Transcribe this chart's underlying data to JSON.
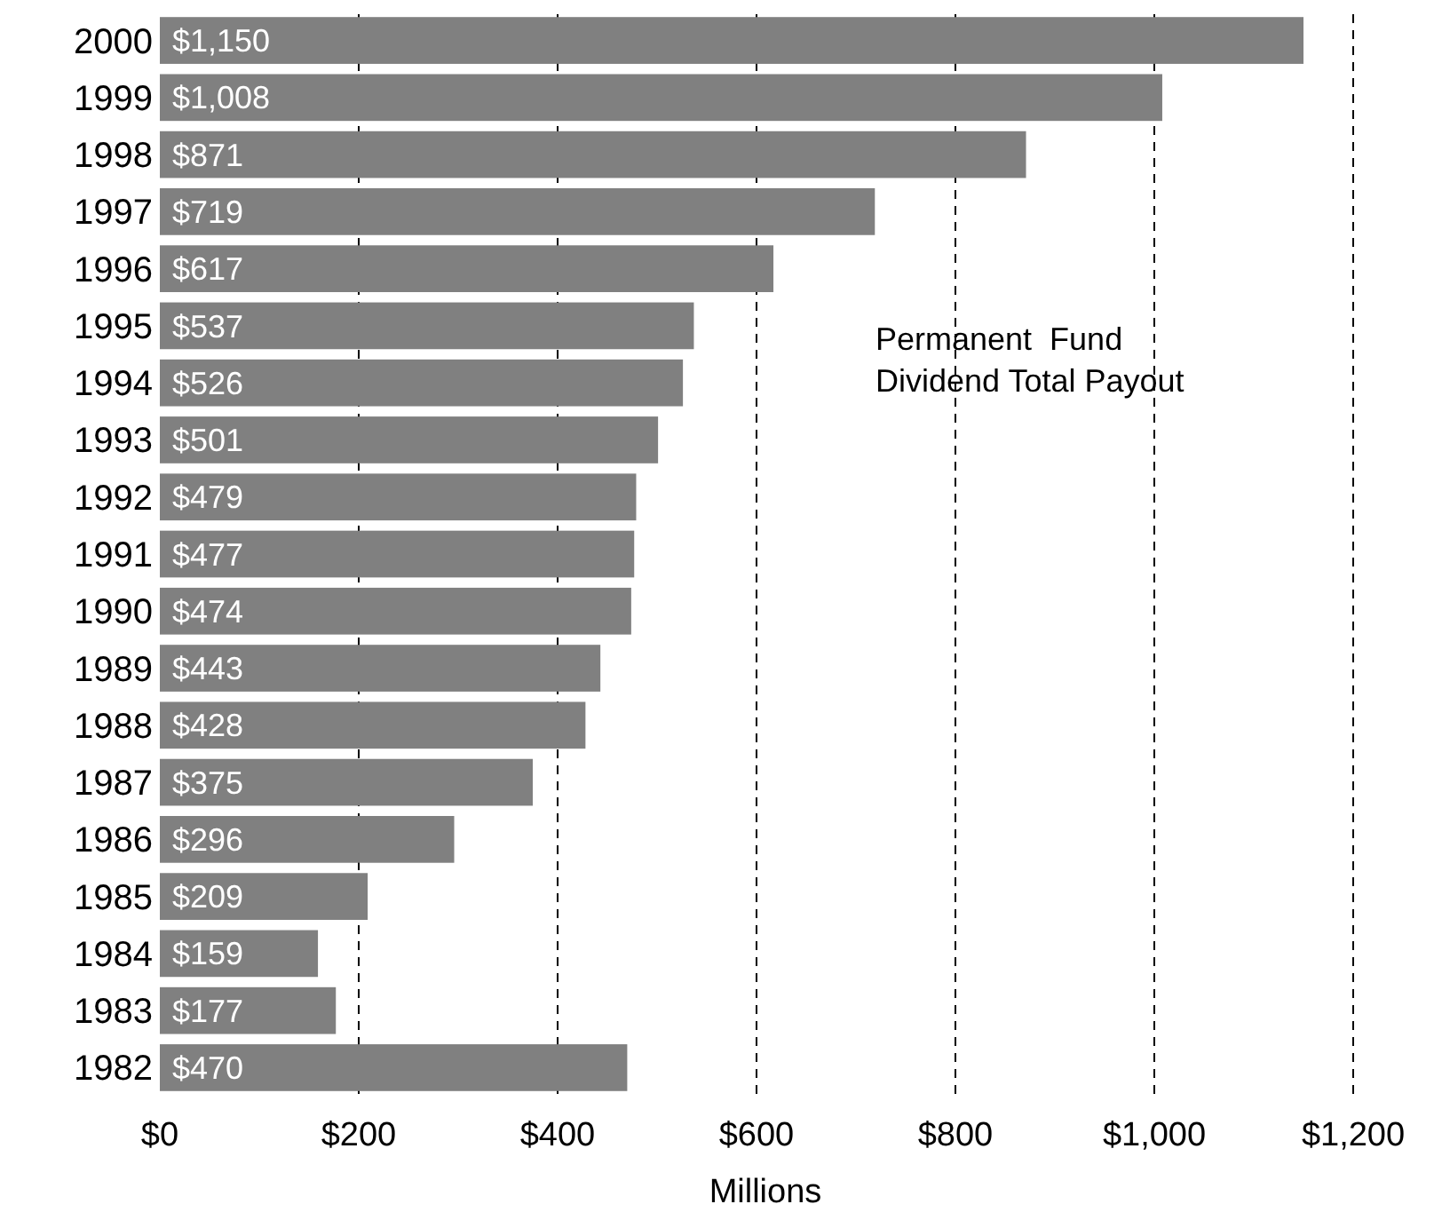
{
  "chart_data": {
    "type": "bar",
    "orientation": "horizontal",
    "xlabel": "Millions",
    "categories": [
      "2000",
      "1999",
      "1998",
      "1997",
      "1996",
      "1995",
      "1994",
      "1993",
      "1992",
      "1991",
      "1990",
      "1989",
      "1988",
      "1987",
      "1986",
      "1985",
      "1984",
      "1983",
      "1982"
    ],
    "values": [
      1150,
      1008,
      871,
      719,
      617,
      537,
      526,
      501,
      479,
      477,
      474,
      443,
      428,
      375,
      296,
      209,
      159,
      177,
      470
    ],
    "value_labels": [
      "$1,150",
      "$1,008",
      "$871",
      "$719",
      "$617",
      "$537",
      "$526",
      "$501",
      "$479",
      "$477",
      "$474",
      "$443",
      "$428",
      "$375",
      "$296",
      "$209",
      "$159",
      "$177",
      "$470"
    ],
    "color": "#808080",
    "xlim": [
      0,
      1200
    ],
    "xticks": [
      {
        "value": 0,
        "label": "$0"
      },
      {
        "value": 200,
        "label": "$200"
      },
      {
        "value": 400,
        "label": "$400"
      },
      {
        "value": 600,
        "label": "$600"
      },
      {
        "value": 800,
        "label": "$800"
      },
      {
        "value": 1000,
        "label": "$1,000"
      },
      {
        "value": 1200,
        "label": "$1,200"
      }
    ],
    "grid": "x",
    "annotations": [
      "Permanent  Fund\nDividend Total Payout"
    ]
  }
}
